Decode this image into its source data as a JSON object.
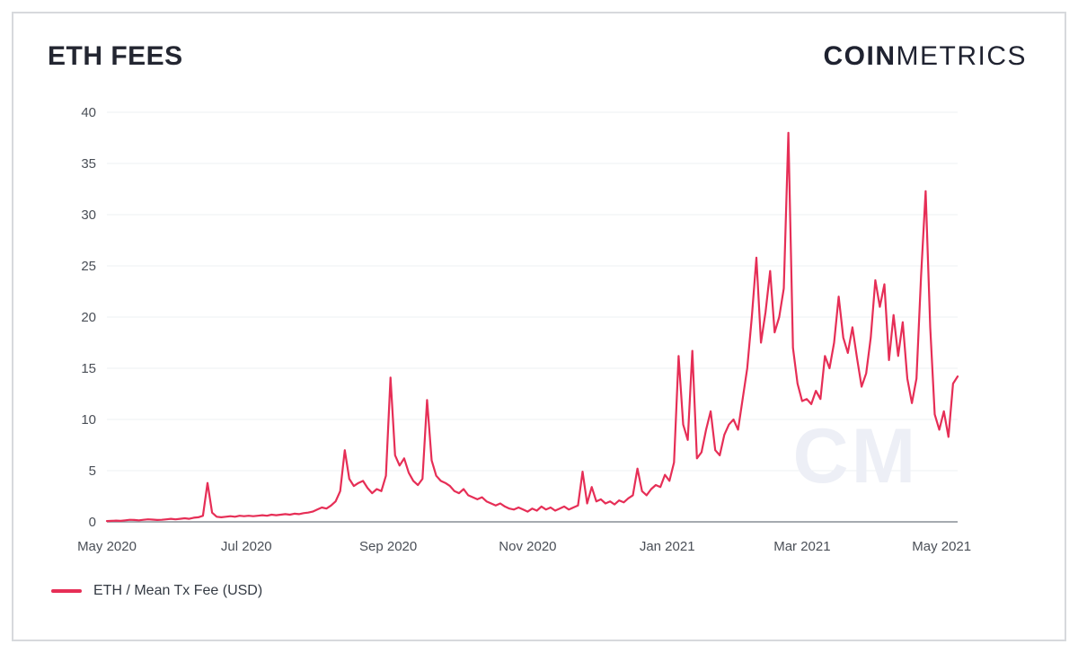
{
  "card": {
    "title": "ETH FEES",
    "brand": {
      "bold": "COIN",
      "light": "METRICS"
    },
    "watermark": "CM"
  },
  "legend": {
    "label": "ETH / Mean Tx Fee (USD)"
  },
  "colors": {
    "line": "#e62e56",
    "grid": "#eef0f3",
    "axis": "#878d96",
    "tick_text": "#4a4f57",
    "title_text": "#232631",
    "border": "#d7d9dc",
    "watermark": "#edeff6"
  },
  "chart_data": {
    "type": "line",
    "title": "ETH FEES",
    "series_name": "ETH / Mean Tx Fee (USD)",
    "x_start": "2020-05-01",
    "x_end": "2021-05-08",
    "x_interval_days": 2,
    "ylim": [
      0,
      40
    ],
    "yticks": [
      0,
      5,
      10,
      15,
      20,
      25,
      30,
      35,
      40
    ],
    "xticks": [
      {
        "label": "May 2020",
        "day": 0
      },
      {
        "label": "Jul 2020",
        "day": 61
      },
      {
        "label": "Sep 2020",
        "day": 123
      },
      {
        "label": "Nov 2020",
        "day": 184
      },
      {
        "label": "Jan 2021",
        "day": 245
      },
      {
        "label": "Mar 2021",
        "day": 304
      },
      {
        "label": "May 2021",
        "day": 365
      }
    ],
    "grid": true,
    "legend_position": "bottom-left",
    "values": [
      0.08,
      0.1,
      0.12,
      0.1,
      0.15,
      0.2,
      0.18,
      0.15,
      0.2,
      0.25,
      0.22,
      0.18,
      0.2,
      0.25,
      0.3,
      0.25,
      0.3,
      0.35,
      0.3,
      0.4,
      0.45,
      0.6,
      3.8,
      0.9,
      0.5,
      0.45,
      0.5,
      0.55,
      0.5,
      0.6,
      0.55,
      0.6,
      0.55,
      0.6,
      0.65,
      0.6,
      0.7,
      0.65,
      0.7,
      0.75,
      0.7,
      0.8,
      0.75,
      0.85,
      0.9,
      1.0,
      1.2,
      1.4,
      1.3,
      1.6,
      2.0,
      3.0,
      7.0,
      4.2,
      3.5,
      3.8,
      4.0,
      3.3,
      2.8,
      3.2,
      3.0,
      4.5,
      14.1,
      6.5,
      5.5,
      6.2,
      4.8,
      4.0,
      3.6,
      4.2,
      11.9,
      6.0,
      4.5,
      4.0,
      3.8,
      3.5,
      3.0,
      2.8,
      3.2,
      2.6,
      2.4,
      2.2,
      2.4,
      2.0,
      1.8,
      1.6,
      1.8,
      1.5,
      1.3,
      1.2,
      1.4,
      1.2,
      1.0,
      1.3,
      1.1,
      1.5,
      1.2,
      1.4,
      1.1,
      1.3,
      1.5,
      1.2,
      1.4,
      1.6,
      4.9,
      1.8,
      3.4,
      2.0,
      2.2,
      1.8,
      2.0,
      1.7,
      2.1,
      1.9,
      2.3,
      2.6,
      5.2,
      3.0,
      2.6,
      3.2,
      3.6,
      3.4,
      4.6,
      4.0,
      5.8,
      16.2,
      9.5,
      8.0,
      16.7,
      6.2,
      6.8,
      9.0,
      10.8,
      7.0,
      6.5,
      8.5,
      9.5,
      10.0,
      9.0,
      12.0,
      15.0,
      20.0,
      25.8,
      17.5,
      20.5,
      24.5,
      18.5,
      20.0,
      22.8,
      38.0,
      17.0,
      13.5,
      11.8,
      12.0,
      11.5,
      12.8,
      12.0,
      16.2,
      15.0,
      17.5,
      22.0,
      18.0,
      16.5,
      19.0,
      16.0,
      13.2,
      14.5,
      18.0,
      23.6,
      21.0,
      23.2,
      15.8,
      20.2,
      16.2,
      19.5,
      14.0,
      11.6,
      14.0,
      24.0,
      32.3,
      19.0,
      10.5,
      9.0,
      10.8,
      8.3,
      13.5,
      14.2
    ]
  }
}
